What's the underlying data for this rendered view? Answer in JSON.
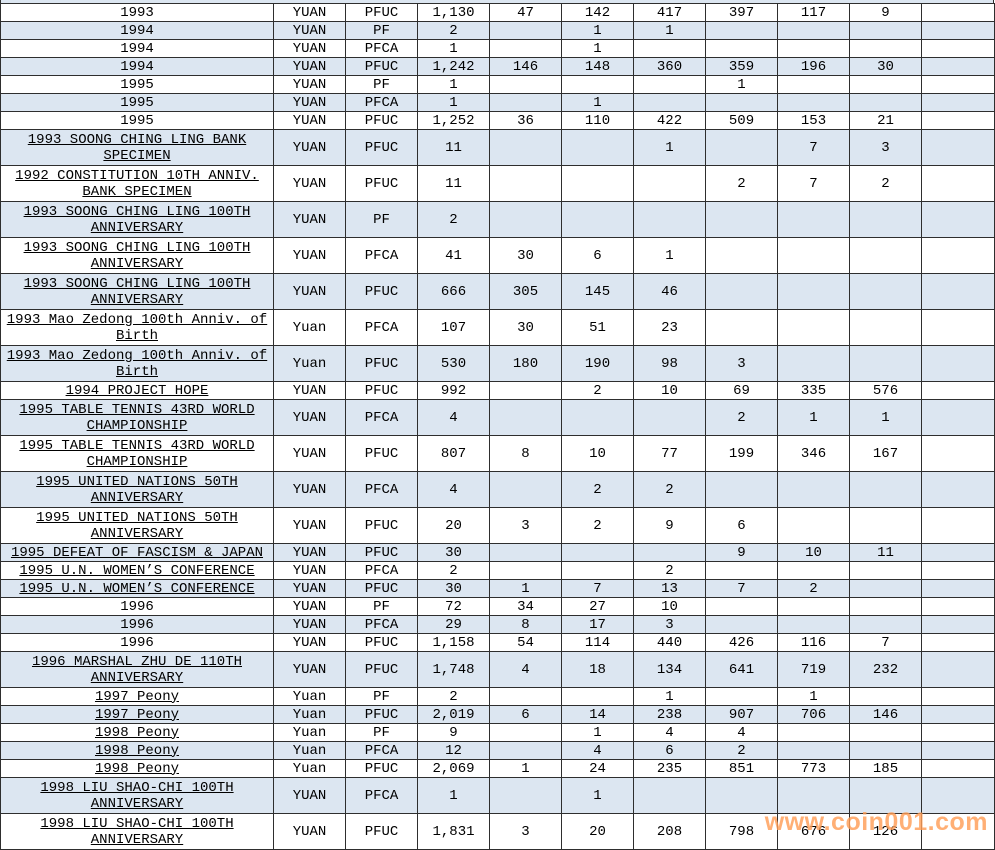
{
  "watermark": {
    "text": "www.coin001.com",
    "color": "#FF9E57"
  },
  "colors": {
    "row_alt": "#DCE6F1",
    "row_base": "#FFFFFF",
    "border": "#2E2E2E"
  },
  "table": {
    "rows": [
      {
        "desc": "1993",
        "unit": "YUAN",
        "grade": "PFUC",
        "underline": false,
        "values": [
          "1,130",
          "47",
          "142",
          "417",
          "397",
          "117",
          "9"
        ]
      },
      {
        "desc": "1994",
        "unit": "YUAN",
        "grade": "PF",
        "underline": false,
        "values": [
          "2",
          "",
          "1",
          "1",
          "",
          "",
          ""
        ]
      },
      {
        "desc": "1994",
        "unit": "YUAN",
        "grade": "PFCA",
        "underline": false,
        "values": [
          "1",
          "",
          "1",
          "",
          "",
          "",
          ""
        ]
      },
      {
        "desc": "1994",
        "unit": "YUAN",
        "grade": "PFUC",
        "underline": false,
        "values": [
          "1,242",
          "146",
          "148",
          "360",
          "359",
          "196",
          "30"
        ]
      },
      {
        "desc": "1995",
        "unit": "YUAN",
        "grade": "PF",
        "underline": false,
        "values": [
          "1",
          "",
          "",
          "",
          "1",
          "",
          ""
        ]
      },
      {
        "desc": "1995",
        "unit": "YUAN",
        "grade": "PFCA",
        "underline": false,
        "values": [
          "1",
          "",
          "1",
          "",
          "",
          "",
          ""
        ]
      },
      {
        "desc": "1995",
        "unit": "YUAN",
        "grade": "PFUC",
        "underline": false,
        "values": [
          "1,252",
          "36",
          "110",
          "422",
          "509",
          "153",
          "21"
        ]
      },
      {
        "desc": "1993 SOONG CHING LING BANK\nSPECIMEN",
        "unit": "YUAN",
        "grade": "PFUC",
        "underline": true,
        "values": [
          "11",
          "",
          "",
          "1",
          "",
          "7",
          "3"
        ]
      },
      {
        "desc": "1992 CONSTITUTION 10TH ANNIV.\nBANK SPECIMEN",
        "unit": "YUAN",
        "grade": "PFUC",
        "underline": true,
        "values": [
          "11",
          "",
          "",
          "",
          "2",
          "7",
          "2"
        ]
      },
      {
        "desc": "1993 SOONG CHING LING 100TH\nANNIVERSARY",
        "unit": "YUAN",
        "grade": "PF",
        "underline": true,
        "values": [
          "2",
          "",
          "",
          "",
          "",
          "",
          ""
        ]
      },
      {
        "desc": "1993 SOONG CHING LING 100TH\nANNIVERSARY",
        "unit": "YUAN",
        "grade": "PFCA",
        "underline": true,
        "values": [
          "41",
          "30",
          "6",
          "1",
          "",
          "",
          ""
        ]
      },
      {
        "desc": "1993 SOONG CHING LING 100TH\nANNIVERSARY",
        "unit": "YUAN",
        "grade": "PFUC",
        "underline": true,
        "values": [
          "666",
          "305",
          "145",
          "46",
          "",
          "",
          ""
        ]
      },
      {
        "desc": "1993 Mao Zedong 100th Anniv. of\nBirth",
        "unit": "Yuan",
        "grade": "PFCA",
        "underline": true,
        "values": [
          "107",
          "30",
          "51",
          "23",
          "",
          "",
          ""
        ]
      },
      {
        "desc": "1993 Mao Zedong 100th Anniv. of\nBirth",
        "unit": "Yuan",
        "grade": "PFUC",
        "underline": true,
        "values": [
          "530",
          "180",
          "190",
          "98",
          "3",
          "",
          ""
        ]
      },
      {
        "desc": "1994 PROJECT HOPE",
        "unit": "YUAN",
        "grade": "PFUC",
        "underline": true,
        "values": [
          "992",
          "",
          "2",
          "10",
          "69",
          "335",
          "576"
        ]
      },
      {
        "desc": "1995 TABLE TENNIS 43RD WORLD\nCHAMPIONSHIP",
        "unit": "YUAN",
        "grade": "PFCA",
        "underline": true,
        "values": [
          "4",
          "",
          "",
          "",
          "2",
          "1",
          "1"
        ]
      },
      {
        "desc": "1995 TABLE TENNIS 43RD WORLD\nCHAMPIONSHIP",
        "unit": "YUAN",
        "grade": "PFUC",
        "underline": true,
        "values": [
          "807",
          "8",
          "10",
          "77",
          "199",
          "346",
          "167"
        ]
      },
      {
        "desc": "1995 UNITED NATIONS 50TH\nANNIVERSARY",
        "unit": "YUAN",
        "grade": "PFCA",
        "underline": true,
        "values": [
          "4",
          "",
          "2",
          "2",
          "",
          "",
          ""
        ]
      },
      {
        "desc": "1995 UNITED NATIONS 50TH\nANNIVERSARY",
        "unit": "YUAN",
        "grade": "PFUC",
        "underline": true,
        "values": [
          "20",
          "3",
          "2",
          "9",
          "6",
          "",
          ""
        ]
      },
      {
        "desc": "1995 DEFEAT OF FASCISM & JAPAN",
        "unit": "YUAN",
        "grade": "PFUC",
        "underline": true,
        "values": [
          "30",
          "",
          "",
          "",
          "9",
          "10",
          "11"
        ]
      },
      {
        "desc": "1995 U.N. WOMEN’S CONFERENCE",
        "unit": "YUAN",
        "grade": "PFCA",
        "underline": true,
        "values": [
          "2",
          "",
          "",
          "2",
          "",
          "",
          ""
        ]
      },
      {
        "desc": "1995 U.N. WOMEN’S CONFERENCE",
        "unit": "YUAN",
        "grade": "PFUC",
        "underline": true,
        "values": [
          "30",
          "1",
          "7",
          "13",
          "7",
          "2",
          ""
        ]
      },
      {
        "desc": "1996",
        "unit": "YUAN",
        "grade": "PF",
        "underline": false,
        "values": [
          "72",
          "34",
          "27",
          "10",
          "",
          "",
          ""
        ]
      },
      {
        "desc": "1996",
        "unit": "YUAN",
        "grade": "PFCA",
        "underline": false,
        "values": [
          "29",
          "8",
          "17",
          "3",
          "",
          "",
          ""
        ]
      },
      {
        "desc": "1996",
        "unit": "YUAN",
        "grade": "PFUC",
        "underline": false,
        "values": [
          "1,158",
          "54",
          "114",
          "440",
          "426",
          "116",
          "7"
        ]
      },
      {
        "desc": "1996 MARSHAL ZHU DE 110TH\nANNIVERSARY",
        "unit": "YUAN",
        "grade": "PFUC",
        "underline": true,
        "values": [
          "1,748",
          "4",
          "18",
          "134",
          "641",
          "719",
          "232"
        ]
      },
      {
        "desc": "1997 Peony",
        "unit": "Yuan",
        "grade": "PF",
        "underline": true,
        "values": [
          "2",
          "",
          "",
          "1",
          "",
          "1",
          ""
        ]
      },
      {
        "desc": "1997 Peony",
        "unit": "Yuan",
        "grade": "PFUC",
        "underline": true,
        "values": [
          "2,019",
          "6",
          "14",
          "238",
          "907",
          "706",
          "146"
        ]
      },
      {
        "desc": "1998 Peony",
        "unit": "Yuan",
        "grade": "PF",
        "underline": true,
        "values": [
          "9",
          "",
          "1",
          "4",
          "4",
          "",
          ""
        ]
      },
      {
        "desc": "1998 Peony",
        "unit": "Yuan",
        "grade": "PFCA",
        "underline": true,
        "values": [
          "12",
          "",
          "4",
          "6",
          "2",
          "",
          ""
        ]
      },
      {
        "desc": "1998 Peony",
        "unit": "Yuan",
        "grade": "PFUC",
        "underline": true,
        "values": [
          "2,069",
          "1",
          "24",
          "235",
          "851",
          "773",
          "185"
        ]
      },
      {
        "desc": "1998 LIU SHAO-CHI 100TH\nANNIVERSARY",
        "unit": "YUAN",
        "grade": "PFCA",
        "underline": true,
        "values": [
          "1",
          "",
          "1",
          "",
          "",
          "",
          ""
        ]
      },
      {
        "desc": "1998 LIU SHAO-CHI 100TH\nANNIVERSARY",
        "unit": "YUAN",
        "grade": "PFUC",
        "underline": true,
        "values": [
          "1,831",
          "3",
          "20",
          "208",
          "798",
          "676",
          "126"
        ]
      }
    ]
  }
}
